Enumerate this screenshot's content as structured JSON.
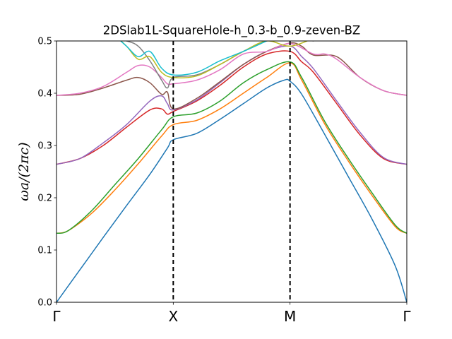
{
  "chart_data": {
    "type": "line",
    "title": "2DSlab1L-SquareHole-h_0.3-b_0.9-zeven-BZ",
    "ylabel": "ωa/(2πc)",
    "xlabel": "",
    "xlim": [
      0,
      3
    ],
    "ylim": [
      0,
      0.5
    ],
    "yticks": [
      0.0,
      0.1,
      0.2,
      0.3,
      0.4,
      0.5
    ],
    "ytick_labels": [
      "0.0",
      "0.1",
      "0.2",
      "0.3",
      "0.4",
      "0.5"
    ],
    "xticks": [
      0,
      1,
      2,
      3
    ],
    "xtick_labels": [
      "Γ",
      "X",
      "M",
      "Γ"
    ],
    "vlines": [
      1,
      2
    ],
    "grid": false,
    "series": [
      {
        "color": "#1f77b4",
        "x": [
          0,
          0.2,
          0.4,
          0.6,
          0.8,
          0.95,
          1.0,
          1.2,
          1.4,
          1.6,
          1.8,
          1.95,
          2.0,
          2.1,
          2.3,
          2.5,
          2.7,
          2.9,
          3.0
        ],
        "y": [
          0,
          0.062,
          0.124,
          0.185,
          0.245,
          0.295,
          0.311,
          0.323,
          0.35,
          0.38,
          0.41,
          0.425,
          0.423,
          0.398,
          0.32,
          0.24,
          0.16,
          0.07,
          0
        ]
      },
      {
        "color": "#ff7f0e",
        "x": [
          0,
          0.1,
          0.3,
          0.5,
          0.7,
          0.9,
          1.0,
          1.2,
          1.4,
          1.6,
          1.8,
          2.0,
          2.1,
          2.3,
          2.5,
          2.7,
          2.9,
          3.0
        ],
        "y": [
          0.132,
          0.137,
          0.17,
          0.215,
          0.265,
          0.318,
          0.34,
          0.348,
          0.37,
          0.4,
          0.43,
          0.458,
          0.425,
          0.34,
          0.27,
          0.205,
          0.145,
          0.132
        ]
      },
      {
        "color": "#2ca02c",
        "x": [
          0,
          0.1,
          0.3,
          0.5,
          0.7,
          0.9,
          1.0,
          1.2,
          1.4,
          1.6,
          1.8,
          2.0,
          2.1,
          2.3,
          2.5,
          2.7,
          2.9,
          3.0
        ],
        "y": [
          0.132,
          0.137,
          0.175,
          0.225,
          0.275,
          0.33,
          0.355,
          0.362,
          0.385,
          0.42,
          0.445,
          0.46,
          0.43,
          0.345,
          0.275,
          0.21,
          0.148,
          0.132
        ]
      },
      {
        "color": "#d62728",
        "x": [
          0,
          0.2,
          0.4,
          0.6,
          0.8,
          0.9,
          0.95,
          1.0,
          1.2,
          1.4,
          1.6,
          1.8,
          2.0,
          2.1,
          2.2,
          2.4,
          2.6,
          2.8,
          3.0
        ],
        "y": [
          0.264,
          0.275,
          0.3,
          0.335,
          0.368,
          0.37,
          0.36,
          0.365,
          0.385,
          0.415,
          0.45,
          0.475,
          0.48,
          0.46,
          0.44,
          0.38,
          0.32,
          0.275,
          0.264
        ]
      },
      {
        "color": "#9467bd",
        "x": [
          0,
          0.2,
          0.4,
          0.6,
          0.8,
          0.9,
          0.95,
          1.0,
          1.2,
          1.4,
          1.6,
          1.8,
          2.0,
          2.1,
          2.2,
          2.4,
          2.6,
          2.8,
          3.0
        ],
        "y": [
          0.264,
          0.275,
          0.305,
          0.34,
          0.385,
          0.395,
          0.38,
          0.368,
          0.387,
          0.42,
          0.455,
          0.48,
          0.49,
          0.47,
          0.447,
          0.385,
          0.325,
          0.277,
          0.264
        ]
      },
      {
        "color": "#8c564b",
        "x": [
          0,
          0.2,
          0.4,
          0.6,
          0.7,
          0.8,
          0.9,
          0.95,
          1.0,
          1.2,
          1.4,
          1.6,
          1.8,
          2.0,
          2.1,
          2.2,
          2.4,
          2.6,
          2.8,
          3.0
        ],
        "y": [
          0.396,
          0.398,
          0.41,
          0.425,
          0.43,
          0.42,
          0.398,
          0.402,
          0.37,
          0.39,
          0.422,
          0.455,
          0.48,
          0.496,
          0.49,
          0.473,
          0.47,
          0.43,
          0.405,
          0.396
        ]
      },
      {
        "color": "#e377c2",
        "x": [
          0,
          0.2,
          0.4,
          0.6,
          0.7,
          0.8,
          0.9,
          0.95,
          1.0,
          1.2,
          1.4,
          1.6,
          1.8,
          2.0,
          2.2,
          2.3,
          2.4,
          2.6,
          2.8,
          3.0
        ],
        "y": [
          0.396,
          0.4,
          0.413,
          0.44,
          0.453,
          0.45,
          0.43,
          0.418,
          0.418,
          0.425,
          0.445,
          0.475,
          0.48,
          0.495,
          0.475,
          0.475,
          0.465,
          0.43,
          0.405,
          0.396
        ]
      },
      {
        "color": "#7f7f7f",
        "x": [
          0.4,
          0.6,
          0.7,
          0.8,
          0.9,
          0.95,
          1.0,
          1.2,
          1.4,
          1.6,
          1.8,
          2.0,
          2.2
        ],
        "y": [
          0.51,
          0.5,
          0.49,
          0.462,
          0.425,
          0.41,
          0.43,
          0.435,
          0.455,
          0.48,
          0.5,
          0.505,
          0.5
        ]
      },
      {
        "color": "#bcbd22",
        "x": [
          0.5,
          0.6,
          0.7,
          0.8,
          0.9,
          1.0,
          1.2,
          1.4,
          1.6,
          1.8,
          2.0,
          2.2
        ],
        "y": [
          0.51,
          0.49,
          0.465,
          0.47,
          0.44,
          0.43,
          0.433,
          0.455,
          0.48,
          0.5,
          0.49,
          0.505
        ]
      },
      {
        "color": "#17becf",
        "x": [
          0.5,
          0.6,
          0.7,
          0.8,
          0.9,
          1.0,
          1.2,
          1.4,
          1.6,
          1.8,
          1.9
        ],
        "y": [
          0.51,
          0.49,
          0.47,
          0.48,
          0.448,
          0.435,
          0.44,
          0.462,
          0.48,
          0.5,
          0.51
        ]
      }
    ]
  }
}
